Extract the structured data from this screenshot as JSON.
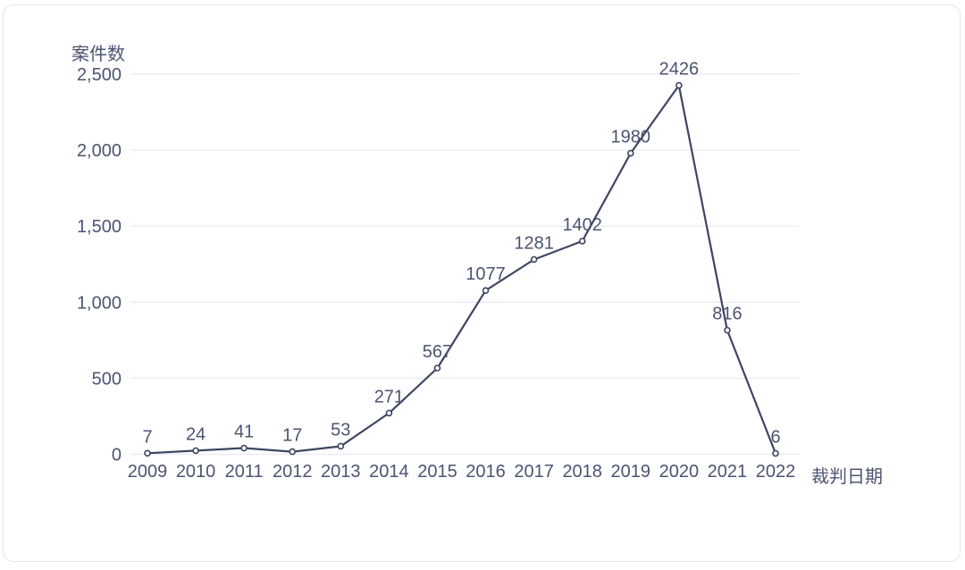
{
  "chart_data": {
    "type": "line",
    "title": "",
    "ylabel": "案件数",
    "xlabel": "裁判日期",
    "categories": [
      "2009",
      "2010",
      "2011",
      "2012",
      "2013",
      "2014",
      "2015",
      "2016",
      "2017",
      "2018",
      "2019",
      "2020",
      "2021",
      "2022"
    ],
    "values": [
      7,
      24,
      41,
      17,
      53,
      271,
      567,
      1077,
      1281,
      1402,
      1980,
      2426,
      816,
      6
    ],
    "data_labels": [
      "7",
      "24",
      "41",
      "17",
      "53",
      "271",
      "567",
      "1077",
      "1281",
      "1402",
      "1980",
      "2426",
      "816",
      "6"
    ],
    "ylim": [
      0,
      2500
    ],
    "yticks": [
      0,
      500,
      1000,
      1500,
      2000,
      2500
    ],
    "ytick_labels": [
      "0",
      "500",
      "1,000",
      "1,500",
      "2,000",
      "2,500"
    ],
    "grid": "horizontal",
    "legend": "none",
    "marker": "open-circle",
    "colors": {
      "line": "#3d4662",
      "marker_fill": "#ffffff",
      "text": "#4b5472",
      "grid": "#e9edf4",
      "card_border": "#e3e6eb",
      "background": "#ffffff"
    }
  }
}
